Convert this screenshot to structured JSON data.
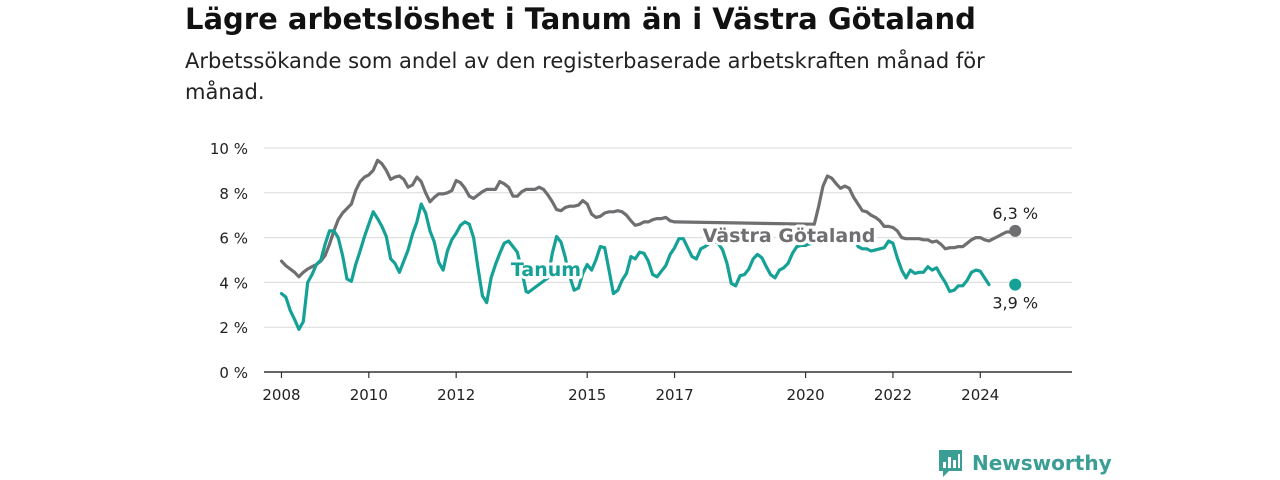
{
  "title": "Lägre arbetslöshet i Tanum än i Västra Götaland",
  "subtitle": "Arbetssökande som andel av den registerbaserade arbetskraften månad för månad.",
  "brand": "Newsworthy",
  "colors": {
    "tanum": "#16a196",
    "vg": "#6f6f72",
    "grid": "#d9d9d9",
    "axis": "#333333"
  },
  "chart_data": {
    "type": "line",
    "title": "Lägre arbetslöshet i Tanum än i Västra Götaland",
    "subtitle": "Arbetssökande som andel av den registerbaserade arbetskraften månad för månad.",
    "xlabel": "",
    "ylabel": "",
    "xlim": [
      2007.6,
      2026.1
    ],
    "ylim": [
      0,
      10
    ],
    "yticks": [
      0,
      2,
      4,
      6,
      8,
      10
    ],
    "ytick_labels": [
      "0 %",
      "2 %",
      "4 %",
      "6 %",
      "8 %",
      "10 %"
    ],
    "xticks": [
      2008,
      2010,
      2012,
      2015,
      2017,
      2020,
      2022,
      2024
    ],
    "xtick_labels": [
      "2008",
      "2010",
      "2012",
      "2015",
      "2017",
      "2020",
      "2022",
      "2024"
    ],
    "grid": true,
    "series": [
      {
        "name": "Västra Götaland",
        "color": "#6f6f72",
        "end_label": "6,3 %",
        "points": [
          [
            2008.0,
            4.95
          ],
          [
            2008.1,
            4.75
          ],
          [
            2008.2,
            4.6
          ],
          [
            2008.3,
            4.45
          ],
          [
            2008.4,
            4.25
          ],
          [
            2008.5,
            4.45
          ],
          [
            2008.6,
            4.6
          ],
          [
            2008.7,
            4.7
          ],
          [
            2008.8,
            4.8
          ],
          [
            2008.9,
            4.95
          ],
          [
            2009.0,
            5.2
          ],
          [
            2009.1,
            5.7
          ],
          [
            2009.2,
            6.3
          ],
          [
            2009.3,
            6.8
          ],
          [
            2009.4,
            7.1
          ],
          [
            2009.5,
            7.3
          ],
          [
            2009.6,
            7.5
          ],
          [
            2009.7,
            8.1
          ],
          [
            2009.8,
            8.5
          ],
          [
            2009.9,
            8.7
          ],
          [
            2010.0,
            8.8
          ],
          [
            2010.1,
            9.0
          ],
          [
            2010.2,
            9.45
          ],
          [
            2010.3,
            9.3
          ],
          [
            2010.4,
            9.0
          ],
          [
            2010.5,
            8.6
          ],
          [
            2010.6,
            8.7
          ],
          [
            2010.7,
            8.75
          ],
          [
            2010.8,
            8.6
          ],
          [
            2010.9,
            8.25
          ],
          [
            2011.0,
            8.35
          ],
          [
            2011.1,
            8.7
          ],
          [
            2011.2,
            8.5
          ],
          [
            2011.3,
            8.0
          ],
          [
            2011.4,
            7.6
          ],
          [
            2011.5,
            7.8
          ],
          [
            2011.6,
            7.95
          ],
          [
            2011.7,
            7.95
          ],
          [
            2011.8,
            8.0
          ],
          [
            2011.9,
            8.1
          ],
          [
            2012.0,
            8.55
          ],
          [
            2012.1,
            8.45
          ],
          [
            2012.2,
            8.2
          ],
          [
            2012.3,
            7.85
          ],
          [
            2012.4,
            7.75
          ],
          [
            2012.5,
            7.9
          ],
          [
            2012.6,
            8.05
          ],
          [
            2012.7,
            8.15
          ],
          [
            2012.8,
            8.15
          ],
          [
            2012.9,
            8.15
          ],
          [
            2013.0,
            8.5
          ],
          [
            2013.1,
            8.4
          ],
          [
            2013.2,
            8.25
          ],
          [
            2013.3,
            7.85
          ],
          [
            2013.4,
            7.85
          ],
          [
            2013.5,
            8.05
          ],
          [
            2013.6,
            8.15
          ],
          [
            2013.7,
            8.15
          ],
          [
            2013.8,
            8.15
          ],
          [
            2013.9,
            8.25
          ],
          [
            2014.0,
            8.15
          ],
          [
            2014.1,
            7.9
          ],
          [
            2014.2,
            7.6
          ],
          [
            2014.3,
            7.25
          ],
          [
            2014.4,
            7.2
          ],
          [
            2014.5,
            7.35
          ],
          [
            2014.6,
            7.4
          ],
          [
            2014.7,
            7.4
          ],
          [
            2014.8,
            7.45
          ],
          [
            2014.9,
            7.65
          ],
          [
            2015.0,
            7.5
          ],
          [
            2015.1,
            7.05
          ],
          [
            2015.2,
            6.9
          ],
          [
            2015.3,
            6.95
          ],
          [
            2015.4,
            7.1
          ],
          [
            2015.5,
            7.15
          ],
          [
            2015.6,
            7.15
          ],
          [
            2015.7,
            7.2
          ],
          [
            2015.8,
            7.15
          ],
          [
            2015.9,
            7.0
          ],
          [
            2016.0,
            6.75
          ],
          [
            2016.1,
            6.55
          ],
          [
            2016.2,
            6.6
          ],
          [
            2016.3,
            6.7
          ],
          [
            2016.4,
            6.7
          ],
          [
            2016.5,
            6.8
          ],
          [
            2016.6,
            6.85
          ],
          [
            2016.7,
            6.85
          ],
          [
            2016.8,
            6.9
          ],
          [
            2016.9,
            6.75
          ],
          [
            2017.0,
            6.7
          ],
          [
            2020.15,
            6.6
          ],
          [
            2020.2,
            6.6
          ],
          [
            2020.3,
            7.4
          ],
          [
            2020.4,
            8.3
          ],
          [
            2020.5,
            8.75
          ],
          [
            2020.6,
            8.65
          ],
          [
            2020.7,
            8.4
          ],
          [
            2020.8,
            8.2
          ],
          [
            2020.9,
            8.3
          ],
          [
            2021.0,
            8.2
          ],
          [
            2021.1,
            7.8
          ],
          [
            2021.2,
            7.5
          ],
          [
            2021.3,
            7.2
          ],
          [
            2021.4,
            7.15
          ],
          [
            2021.5,
            7.0
          ],
          [
            2021.6,
            6.9
          ],
          [
            2021.7,
            6.75
          ],
          [
            2021.8,
            6.5
          ],
          [
            2021.9,
            6.5
          ],
          [
            2022.0,
            6.45
          ],
          [
            2022.1,
            6.3
          ],
          [
            2022.2,
            6.0
          ],
          [
            2022.3,
            5.95
          ],
          [
            2022.4,
            5.95
          ],
          [
            2022.5,
            5.95
          ],
          [
            2022.6,
            5.95
          ],
          [
            2022.7,
            5.9
          ],
          [
            2022.8,
            5.9
          ],
          [
            2022.9,
            5.8
          ],
          [
            2023.0,
            5.85
          ],
          [
            2023.1,
            5.7
          ],
          [
            2023.2,
            5.5
          ],
          [
            2023.3,
            5.55
          ],
          [
            2023.4,
            5.55
          ],
          [
            2023.5,
            5.6
          ],
          [
            2023.6,
            5.6
          ],
          [
            2023.7,
            5.75
          ],
          [
            2023.8,
            5.9
          ],
          [
            2023.9,
            6.0
          ],
          [
            2024.0,
            6.0
          ],
          [
            2024.1,
            5.9
          ],
          [
            2024.2,
            5.85
          ],
          [
            2024.3,
            5.95
          ],
          [
            2024.4,
            6.05
          ],
          [
            2024.5,
            6.15
          ],
          [
            2024.6,
            6.25
          ],
          [
            2024.7,
            6.25
          ],
          [
            2024.8,
            6.3
          ]
        ],
        "end": [
          2024.8,
          6.3
        ]
      },
      {
        "name": "Tanum",
        "color": "#16a196",
        "end_label": "3,9 %",
        "points": [
          [
            2008.0,
            3.5
          ],
          [
            2008.1,
            3.35
          ],
          [
            2008.2,
            2.75
          ],
          [
            2008.3,
            2.35
          ],
          [
            2008.4,
            1.9
          ],
          [
            2008.5,
            2.25
          ],
          [
            2008.6,
            4.0
          ],
          [
            2008.7,
            4.35
          ],
          [
            2008.8,
            4.8
          ],
          [
            2008.9,
            5.0
          ],
          [
            2009.0,
            5.7
          ],
          [
            2009.1,
            6.3
          ],
          [
            2009.2,
            6.3
          ],
          [
            2009.3,
            6.0
          ],
          [
            2009.4,
            5.2
          ],
          [
            2009.5,
            4.15
          ],
          [
            2009.6,
            4.05
          ],
          [
            2009.7,
            4.8
          ],
          [
            2009.8,
            5.4
          ],
          [
            2009.9,
            6.05
          ],
          [
            2010.0,
            6.6
          ],
          [
            2010.1,
            7.15
          ],
          [
            2010.2,
            6.85
          ],
          [
            2010.3,
            6.5
          ],
          [
            2010.4,
            6.05
          ],
          [
            2010.5,
            5.05
          ],
          [
            2010.6,
            4.85
          ],
          [
            2010.7,
            4.45
          ],
          [
            2010.8,
            4.95
          ],
          [
            2010.9,
            5.45
          ],
          [
            2011.0,
            6.15
          ],
          [
            2011.1,
            6.7
          ],
          [
            2011.2,
            7.5
          ],
          [
            2011.3,
            7.1
          ],
          [
            2011.4,
            6.3
          ],
          [
            2011.5,
            5.8
          ],
          [
            2011.6,
            4.9
          ],
          [
            2011.7,
            4.55
          ],
          [
            2011.8,
            5.4
          ],
          [
            2011.9,
            5.9
          ],
          [
            2012.0,
            6.2
          ],
          [
            2012.1,
            6.55
          ],
          [
            2012.2,
            6.7
          ],
          [
            2012.3,
            6.6
          ],
          [
            2012.4,
            6.0
          ],
          [
            2012.5,
            4.65
          ],
          [
            2012.6,
            3.4
          ],
          [
            2012.7,
            3.1
          ],
          [
            2012.8,
            4.2
          ],
          [
            2012.9,
            4.8
          ],
          [
            2013.0,
            5.3
          ],
          [
            2013.1,
            5.75
          ],
          [
            2013.2,
            5.85
          ],
          [
            2013.3,
            5.6
          ],
          [
            2013.4,
            5.35
          ],
          [
            2013.5,
            4.55
          ],
          [
            2013.6,
            3.6
          ],
          [
            2013.65,
            3.55
          ],
          [
            2014.1,
            4.2
          ],
          [
            2014.2,
            5.3
          ],
          [
            2014.3,
            6.05
          ],
          [
            2014.4,
            5.8
          ],
          [
            2014.5,
            5.1
          ],
          [
            2014.55,
            4.6
          ],
          [
            2014.7,
            3.65
          ],
          [
            2014.8,
            3.75
          ],
          [
            2014.9,
            4.4
          ],
          [
            2015.0,
            4.8
          ],
          [
            2015.1,
            4.55
          ],
          [
            2015.2,
            5.0
          ],
          [
            2015.3,
            5.6
          ],
          [
            2015.4,
            5.55
          ],
          [
            2015.5,
            4.55
          ],
          [
            2015.6,
            3.5
          ],
          [
            2015.7,
            3.65
          ],
          [
            2015.8,
            4.1
          ],
          [
            2015.9,
            4.4
          ],
          [
            2016.0,
            5.15
          ],
          [
            2016.1,
            5.05
          ],
          [
            2016.2,
            5.35
          ],
          [
            2016.3,
            5.3
          ],
          [
            2016.4,
            4.95
          ],
          [
            2016.5,
            4.35
          ],
          [
            2016.6,
            4.25
          ],
          [
            2016.7,
            4.5
          ],
          [
            2016.8,
            4.75
          ],
          [
            2016.9,
            5.25
          ],
          [
            2017.0,
            5.55
          ],
          [
            2017.1,
            5.95
          ],
          [
            2017.2,
            5.95
          ],
          [
            2017.3,
            5.55
          ],
          [
            2017.4,
            5.15
          ],
          [
            2017.5,
            5.05
          ],
          [
            2017.6,
            5.5
          ],
          [
            2017.7,
            5.6
          ],
          [
            2017.8,
            5.75
          ],
          [
            2017.9,
            5.85
          ],
          [
            2018.0,
            5.75
          ],
          [
            2018.1,
            5.45
          ],
          [
            2018.2,
            4.85
          ],
          [
            2018.3,
            3.95
          ],
          [
            2018.4,
            3.85
          ],
          [
            2018.5,
            4.3
          ],
          [
            2018.6,
            4.35
          ],
          [
            2018.7,
            4.6
          ],
          [
            2018.8,
            5.05
          ],
          [
            2018.9,
            5.25
          ],
          [
            2019.0,
            5.1
          ],
          [
            2019.1,
            4.7
          ],
          [
            2019.2,
            4.35
          ],
          [
            2019.3,
            4.2
          ],
          [
            2019.4,
            4.55
          ],
          [
            2019.5,
            4.65
          ],
          [
            2019.6,
            4.85
          ],
          [
            2019.7,
            5.3
          ],
          [
            2019.8,
            5.6
          ],
          [
            2019.9,
            5.65
          ],
          [
            2020.0,
            5.65
          ],
          [
            2020.05,
            5.7
          ],
          [
            2021.15,
            6.15
          ],
          [
            2021.2,
            5.6
          ],
          [
            2021.3,
            5.5
          ],
          [
            2021.4,
            5.5
          ],
          [
            2021.5,
            5.4
          ],
          [
            2021.6,
            5.45
          ],
          [
            2021.7,
            5.5
          ],
          [
            2021.8,
            5.55
          ],
          [
            2021.9,
            5.85
          ],
          [
            2022.0,
            5.75
          ],
          [
            2022.1,
            5.1
          ],
          [
            2022.2,
            4.55
          ],
          [
            2022.3,
            4.2
          ],
          [
            2022.4,
            4.55
          ],
          [
            2022.5,
            4.4
          ],
          [
            2022.6,
            4.45
          ],
          [
            2022.7,
            4.45
          ],
          [
            2022.8,
            4.7
          ],
          [
            2022.9,
            4.55
          ],
          [
            2023.0,
            4.65
          ],
          [
            2023.1,
            4.3
          ],
          [
            2023.2,
            4.0
          ],
          [
            2023.3,
            3.6
          ],
          [
            2023.4,
            3.65
          ],
          [
            2023.5,
            3.85
          ],
          [
            2023.6,
            3.85
          ],
          [
            2023.7,
            4.1
          ],
          [
            2023.8,
            4.45
          ],
          [
            2023.9,
            4.55
          ],
          [
            2024.0,
            4.5
          ],
          [
            2024.1,
            4.2
          ],
          [
            2024.2,
            3.9
          ]
        ],
        "end": [
          2024.8,
          3.9
        ]
      }
    ]
  }
}
